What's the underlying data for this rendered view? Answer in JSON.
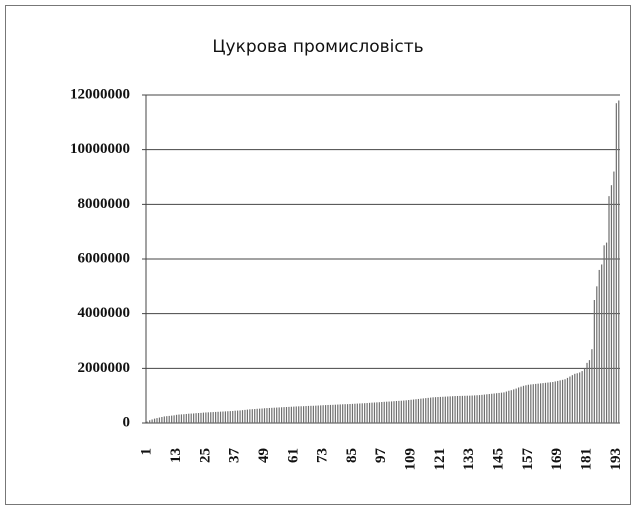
{
  "chart_data": {
    "type": "bar",
    "title": "Цукрова промисловість",
    "categories": [
      "1",
      null,
      null,
      null,
      null,
      null,
      null,
      null,
      null,
      null,
      null,
      null,
      "13",
      null,
      null,
      null,
      null,
      null,
      null,
      null,
      null,
      null,
      null,
      null,
      "25",
      null,
      null,
      null,
      null,
      null,
      null,
      null,
      null,
      null,
      null,
      null,
      "37",
      null,
      null,
      null,
      null,
      null,
      null,
      null,
      null,
      null,
      null,
      null,
      "49",
      null,
      null,
      null,
      null,
      null,
      null,
      null,
      null,
      null,
      null,
      null,
      "61",
      null,
      null,
      null,
      null,
      null,
      null,
      null,
      null,
      null,
      null,
      null,
      "73",
      null,
      null,
      null,
      null,
      null,
      null,
      null,
      null,
      null,
      null,
      null,
      "85",
      null,
      null,
      null,
      null,
      null,
      null,
      null,
      null,
      null,
      null,
      null,
      "97",
      null,
      null,
      null,
      null,
      null,
      null,
      null,
      null,
      null,
      null,
      null,
      "109",
      null,
      null,
      null,
      null,
      null,
      null,
      null,
      null,
      null,
      null,
      null,
      "121",
      null,
      null,
      null,
      null,
      null,
      null,
      null,
      null,
      null,
      null,
      null,
      "133",
      null,
      null,
      null,
      null,
      null,
      null,
      null,
      null,
      null,
      null,
      null,
      "145",
      null,
      null,
      null,
      null,
      null,
      null,
      null,
      null,
      null,
      null,
      null,
      "157",
      null,
      null,
      null,
      null,
      null,
      null,
      null,
      null,
      null,
      null,
      null,
      "169",
      null,
      null,
      null,
      null,
      null,
      null,
      null,
      null,
      null,
      null,
      null,
      "181",
      null,
      null,
      null,
      null,
      null,
      null,
      null,
      null,
      null,
      null,
      null,
      "193",
      null
    ],
    "values": [
      50000,
      100000,
      130000,
      160000,
      180000,
      200000,
      220000,
      240000,
      250000,
      260000,
      270000,
      280000,
      300000,
      310000,
      315000,
      320000,
      330000,
      340000,
      345000,
      350000,
      360000,
      365000,
      370000,
      380000,
      385000,
      390000,
      395000,
      400000,
      405000,
      410000,
      415000,
      420000,
      425000,
      430000,
      435000,
      440000,
      450000,
      455000,
      460000,
      470000,
      480000,
      490000,
      500000,
      505000,
      510000,
      520000,
      525000,
      530000,
      540000,
      545000,
      550000,
      555000,
      560000,
      565000,
      570000,
      575000,
      580000,
      585000,
      590000,
      595000,
      600000,
      605000,
      610000,
      612000,
      615000,
      620000,
      625000,
      628000,
      630000,
      635000,
      640000,
      645000,
      650000,
      655000,
      660000,
      662000,
      665000,
      670000,
      675000,
      680000,
      685000,
      688000,
      690000,
      695000,
      700000,
      705000,
      710000,
      715000,
      720000,
      725000,
      730000,
      738000,
      745000,
      750000,
      755000,
      760000,
      768000,
      775000,
      780000,
      785000,
      790000,
      798000,
      805000,
      810000,
      815000,
      822000,
      830000,
      840000,
      850000,
      860000,
      870000,
      880000,
      890000,
      900000,
      910000,
      920000,
      930000,
      940000,
      945000,
      950000,
      955000,
      960000,
      965000,
      970000,
      975000,
      980000,
      985000,
      988000,
      990000,
      993000,
      995000,
      998000,
      1000000,
      1005000,
      1010000,
      1015000,
      1020000,
      1030000,
      1040000,
      1050000,
      1060000,
      1070000,
      1080000,
      1090000,
      1100000,
      1110000,
      1120000,
      1150000,
      1180000,
      1200000,
      1230000,
      1260000,
      1300000,
      1330000,
      1360000,
      1380000,
      1400000,
      1410000,
      1420000,
      1430000,
      1440000,
      1450000,
      1460000,
      1470000,
      1480000,
      1490000,
      1500000,
      1520000,
      1540000,
      1560000,
      1580000,
      1600000,
      1650000,
      1700000,
      1750000,
      1800000,
      1820000,
      1850000,
      1900000,
      2000000,
      2200000,
      2300000,
      2700000,
      4500000,
      5000000,
      5600000,
      5800000,
      6500000,
      6600000,
      8300000,
      8700000,
      9200000,
      11700000,
      11800000
    ],
    "color": "#6e6e6e",
    "ylim": [
      0,
      12000000
    ],
    "yticks": [
      0,
      2000000,
      4000000,
      6000000,
      8000000,
      10000000,
      12000000
    ],
    "grid": true
  }
}
